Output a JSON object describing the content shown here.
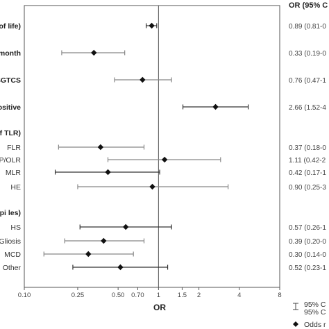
{
  "chart_data": {
    "type": "forest",
    "ci_header": "OR (95% C",
    "xlabel": "OR",
    "xscale": "log",
    "xlim": [
      0.1,
      8
    ],
    "reference_line": 1,
    "x_ticks": [
      {
        "value": 0.1,
        "label": "0.10"
      },
      {
        "value": 0.25,
        "label": "0.25"
      },
      {
        "value": 0.5,
        "label": "0.50"
      },
      {
        "value": 0.7,
        "label": "0.70"
      },
      {
        "value": 1,
        "label": "1"
      },
      {
        "value": 1.5,
        "label": "1.5"
      },
      {
        "value": 2,
        "label": "2"
      },
      {
        "value": 4,
        "label": "4"
      },
      {
        "value": 8,
        "label": "8"
      }
    ],
    "rows": [
      {
        "label": "of life)",
        "bold": true,
        "type": "row",
        "or": 0.89,
        "lo": 0.81,
        "hi": 0.97,
        "ci_text": "0.89 (0.81-0",
        "dark": true
      },
      {
        "label": "/month",
        "bold": true,
        "type": "row",
        "or": 0.33,
        "lo": 0.19,
        "hi": 0.56,
        "ci_text": "0.33 (0.19-0",
        "dark": false
      },
      {
        "label": "SGTCS",
        "bold": true,
        "type": "row",
        "or": 0.76,
        "lo": 0.47,
        "hi": 1.25,
        "ci_text": "0.76 (0.47-1",
        "dark": false
      },
      {
        "label": "ositive",
        "bold": true,
        "type": "row",
        "or": 2.66,
        "lo": 1.52,
        "hi": 4.66,
        "ci_text": "2.66 (1.52-4",
        "dark": true
      },
      {
        "label": "ef TLR)",
        "bold": true,
        "type": "header"
      },
      {
        "label": "FLR",
        "bold": false,
        "type": "row",
        "or": 0.37,
        "lo": 0.18,
        "hi": 0.78,
        "ci_text": "0.37 (0.18-0",
        "dark": false
      },
      {
        "label": "P/OLR",
        "bold": false,
        "type": "row",
        "or": 1.11,
        "lo": 0.42,
        "hi": 2.9,
        "ci_text": "1.11 (0.42-2",
        "dark": false
      },
      {
        "label": "MLR",
        "bold": false,
        "type": "row",
        "or": 0.42,
        "lo": 0.17,
        "hi": 1.02,
        "ci_text": "0.42 (0.17-1",
        "dark": true
      },
      {
        "label": "HE",
        "bold": false,
        "type": "row",
        "or": 0.9,
        "lo": 0.25,
        "hi": 3.3,
        "ci_text": "0.90 (0.25-3",
        "dark": false
      },
      {
        "label": "Epi les)",
        "bold": true,
        "type": "header"
      },
      {
        "label": "HS",
        "bold": false,
        "type": "row",
        "or": 0.57,
        "lo": 0.26,
        "hi": 1.25,
        "ci_text": "0.57 (0.26-1",
        "dark": true
      },
      {
        "label": "Gliosis",
        "bold": false,
        "type": "row",
        "or": 0.39,
        "lo": 0.2,
        "hi": 0.78,
        "ci_text": "0.39 (0.20-0",
        "dark": false
      },
      {
        "label": "MCD",
        "bold": false,
        "type": "row",
        "or": 0.3,
        "lo": 0.14,
        "hi": 0.65,
        "ci_text": "0.30 (0.14-0",
        "dark": false
      },
      {
        "label": "Other",
        "bold": false,
        "type": "row",
        "or": 0.52,
        "lo": 0.23,
        "hi": 1.17,
        "ci_text": "0.52 (0.23-1",
        "dark": true
      }
    ],
    "legend": [
      {
        "symbol": "ci-bar",
        "lines": [
          "95% C",
          "95% C"
        ]
      },
      {
        "symbol": "diamond",
        "lines": [
          "Odds r"
        ]
      }
    ]
  }
}
